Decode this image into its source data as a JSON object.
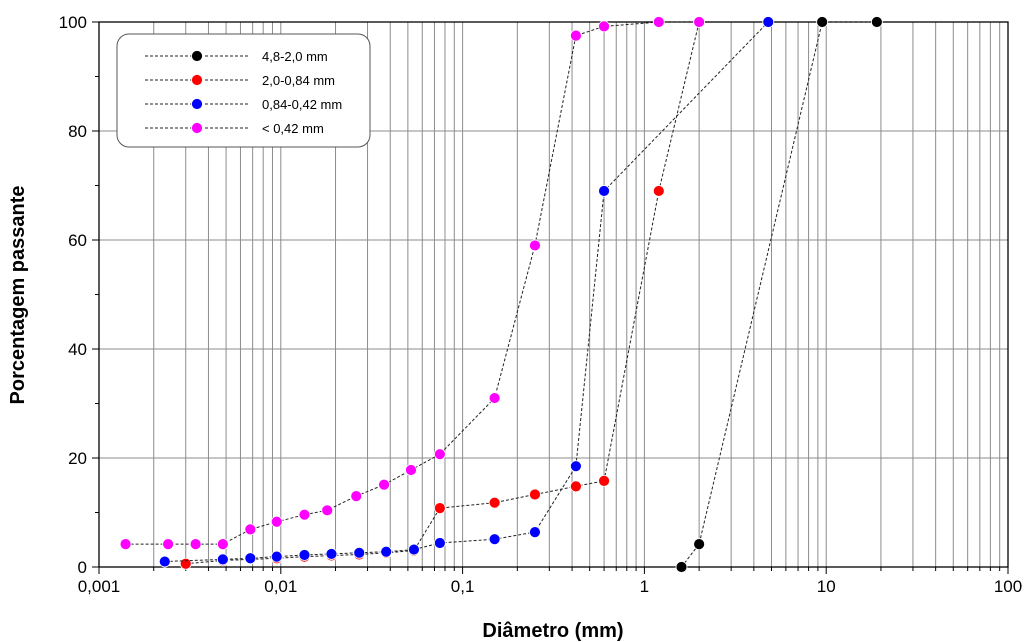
{
  "chart_data": {
    "type": "scatter",
    "xlabel": "Diâmetro (mm)",
    "ylabel": "Porcentagem passante",
    "xscale": "log",
    "xlim": [
      0.001,
      100
    ],
    "ylim": [
      0,
      100
    ],
    "grid": true,
    "legend_position": "top-left",
    "x_tick_labels": [
      "0,001",
      "0,01",
      "0,1",
      "1",
      "10",
      "100"
    ],
    "y_tick_labels": [
      "0",
      "20",
      "40",
      "60",
      "80",
      "100"
    ],
    "series": [
      {
        "name": "4,8-2,0 mm",
        "color": "#000000",
        "points": [
          [
            1.6,
            0
          ],
          [
            2.0,
            4.2
          ],
          [
            9.5,
            100
          ],
          [
            19.0,
            100
          ]
        ]
      },
      {
        "name": "2,0-0,84 mm",
        "color": "#ff0000",
        "points": [
          [
            0.003,
            0.6
          ],
          [
            0.0048,
            1.2
          ],
          [
            0.0095,
            1.6
          ],
          [
            0.0135,
            1.9
          ],
          [
            0.019,
            2.1
          ],
          [
            0.027,
            2.3
          ],
          [
            0.038,
            2.6
          ],
          [
            0.054,
            3.0
          ],
          [
            0.075,
            10.8
          ],
          [
            0.15,
            11.8
          ],
          [
            0.25,
            13.3
          ],
          [
            0.42,
            14.8
          ],
          [
            0.6,
            15.8
          ],
          [
            1.2,
            69
          ],
          [
            2.0,
            100
          ]
        ]
      },
      {
        "name": "0,84-0,42 mm",
        "color": "#0000ff",
        "points": [
          [
            0.0023,
            1.0
          ],
          [
            0.0048,
            1.4
          ],
          [
            0.0068,
            1.6
          ],
          [
            0.0095,
            1.9
          ],
          [
            0.0135,
            2.2
          ],
          [
            0.019,
            2.4
          ],
          [
            0.027,
            2.6
          ],
          [
            0.038,
            2.8
          ],
          [
            0.054,
            3.2
          ],
          [
            0.075,
            4.4
          ],
          [
            0.15,
            5.1
          ],
          [
            0.25,
            6.4
          ],
          [
            0.42,
            18.5
          ],
          [
            0.6,
            69
          ],
          [
            4.8,
            100
          ]
        ]
      },
      {
        "name": "< 0,42 mm",
        "color": "#ff00ff",
        "points": [
          [
            0.0014,
            4.2
          ],
          [
            0.0024,
            4.2
          ],
          [
            0.0034,
            4.2
          ],
          [
            0.0048,
            4.2
          ],
          [
            0.0068,
            6.9
          ],
          [
            0.0095,
            8.3
          ],
          [
            0.0135,
            9.6
          ],
          [
            0.018,
            10.4
          ],
          [
            0.026,
            13.0
          ],
          [
            0.037,
            15.1
          ],
          [
            0.052,
            17.8
          ],
          [
            0.075,
            20.7
          ],
          [
            0.15,
            31.0
          ],
          [
            0.25,
            59.0
          ],
          [
            0.42,
            97.5
          ],
          [
            0.6,
            99.2
          ],
          [
            1.2,
            100
          ],
          [
            2.0,
            100
          ]
        ]
      }
    ]
  }
}
